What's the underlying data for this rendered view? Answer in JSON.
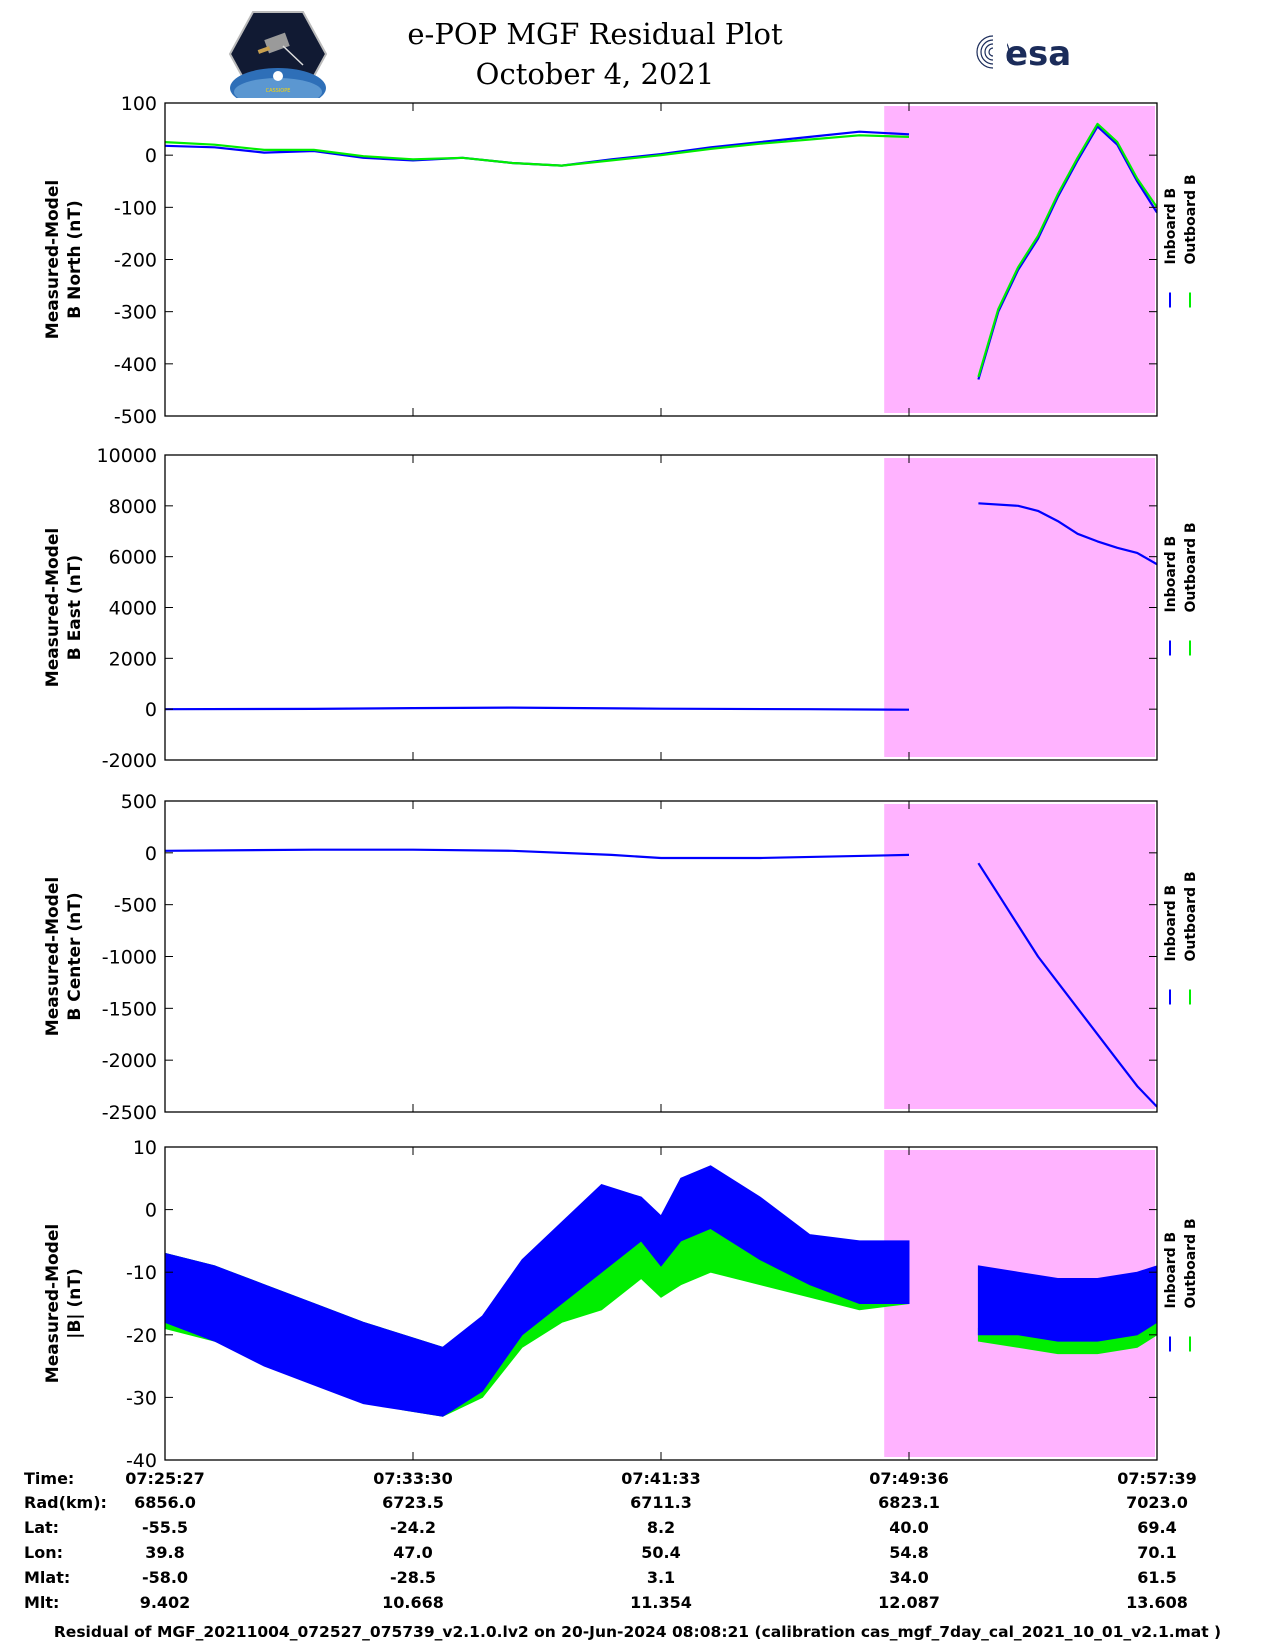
{
  "header": {
    "title_line1": "e-POP MGF Residual Plot",
    "title_line2": "October 4, 2021",
    "logo_left_icon": "cassiope-mission-badge",
    "logo_left_text": "CASSIOPE",
    "logo_right_icon": "esa-logo",
    "logo_right_text": "esa"
  },
  "colors": {
    "inboard": "#0000ff",
    "outboard": "#00ee00",
    "shade": "#ffb3ff"
  },
  "chart_data": [
    {
      "type": "line",
      "ylabel_line1": "Measured-Model",
      "ylabel_line2": "B North (nT)",
      "ylim": [
        -500,
        100
      ],
      "yticks": [
        100,
        0,
        -100,
        -200,
        -300,
        -400,
        -500
      ],
      "legend": [
        "Inboard B",
        "Outboard B"
      ],
      "legend_placement": "right",
      "series": [
        {
          "name": "Inboard B",
          "color": "#0000ff",
          "x": [
            0,
            0.05,
            0.1,
            0.15,
            0.2,
            0.25,
            0.3,
            0.35,
            0.4,
            0.45,
            0.5,
            0.55,
            0.6,
            0.65,
            0.7,
            0.75
          ],
          "y": [
            18,
            15,
            5,
            8,
            -5,
            -10,
            -5,
            -15,
            -20,
            -8,
            2,
            15,
            25,
            35,
            45,
            40
          ]
        },
        {
          "name": "Outboard B",
          "color": "#00ee00",
          "x": [
            0,
            0.05,
            0.1,
            0.15,
            0.2,
            0.25,
            0.3,
            0.35,
            0.4,
            0.45,
            0.5,
            0.55,
            0.6,
            0.65,
            0.7,
            0.75
          ],
          "y": [
            25,
            20,
            10,
            10,
            -2,
            -8,
            -5,
            -15,
            -20,
            -10,
            0,
            12,
            22,
            30,
            38,
            35
          ]
        },
        {
          "name": "Inboard B",
          "color": "#0000ff",
          "x": [
            0.82,
            0.84,
            0.86,
            0.88,
            0.9,
            0.92,
            0.94,
            0.96,
            0.98,
            1.0
          ],
          "y": [
            -430,
            -300,
            -220,
            -160,
            -80,
            -10,
            55,
            20,
            -50,
            -110
          ]
        },
        {
          "name": "Outboard B",
          "color": "#00ee00",
          "x": [
            0.82,
            0.84,
            0.86,
            0.88,
            0.9,
            0.92,
            0.94,
            0.96,
            0.98,
            1.0
          ],
          "y": [
            -425,
            -295,
            -215,
            -155,
            -75,
            -5,
            60,
            25,
            -45,
            -100
          ]
        }
      ]
    },
    {
      "type": "line",
      "ylabel_line1": "Measured-Model",
      "ylabel_line2": "B East (nT)",
      "ylim": [
        -2000,
        10000
      ],
      "yticks": [
        10000,
        8000,
        6000,
        4000,
        2000,
        0,
        -2000
      ],
      "legend": [
        "Inboard B",
        "Outboard B"
      ],
      "legend_placement": "right",
      "series": [
        {
          "name": "Inboard B",
          "color": "#0000ff",
          "x": [
            0,
            0.15,
            0.25,
            0.35,
            0.5,
            0.65,
            0.75
          ],
          "y": [
            0,
            10,
            40,
            60,
            20,
            0,
            -20
          ]
        },
        {
          "name": "Inboard B",
          "color": "#0000ff",
          "x": [
            0.82,
            0.86,
            0.88,
            0.9,
            0.92,
            0.94,
            0.96,
            0.98,
            1.0
          ],
          "y": [
            8100,
            8000,
            7800,
            7400,
            6900,
            6600,
            6350,
            6150,
            5700
          ]
        }
      ]
    },
    {
      "type": "line",
      "ylabel_line1": "Measured-Model",
      "ylabel_line2": "B Center (nT)",
      "ylim": [
        -2500,
        500
      ],
      "yticks": [
        500,
        0,
        -500,
        -1000,
        -1500,
        -2000,
        -2500
      ],
      "legend": [
        "Inboard B",
        "Outboard B"
      ],
      "legend_placement": "right",
      "series": [
        {
          "name": "Inboard B",
          "color": "#0000ff",
          "x": [
            0,
            0.15,
            0.25,
            0.35,
            0.45,
            0.5,
            0.6,
            0.75
          ],
          "y": [
            20,
            30,
            30,
            20,
            -20,
            -50,
            -50,
            -20
          ]
        },
        {
          "name": "Inboard B",
          "color": "#0000ff",
          "x": [
            0.82,
            0.84,
            0.86,
            0.88,
            0.9,
            0.92,
            0.94,
            0.96,
            0.98,
            1.0
          ],
          "y": [
            -100,
            -400,
            -700,
            -1000,
            -1250,
            -1500,
            -1750,
            -2000,
            -2250,
            -2450
          ]
        }
      ]
    },
    {
      "type": "line",
      "ylabel_line1": "Measured-Model",
      "ylabel_line2": "|B| (nT)",
      "ylim": [
        -40,
        10
      ],
      "yticks": [
        10,
        0,
        -10,
        -20,
        -30,
        -40
      ],
      "legend": [
        "Inboard B",
        "Outboard B"
      ],
      "legend_placement": "right",
      "series": [
        {
          "name": "Outboard B",
          "color": "#00ee00",
          "x": [
            0,
            0.05,
            0.1,
            0.15,
            0.2,
            0.24,
            0.28,
            0.32,
            0.36,
            0.4,
            0.44,
            0.48,
            0.5,
            0.52,
            0.55,
            0.6,
            0.65,
            0.7,
            0.75
          ],
          "y_top": [
            -7,
            -9,
            -12,
            -15,
            -18,
            -20,
            -22,
            -18,
            -10,
            -7,
            -6,
            -3,
            -8,
            -4,
            -1,
            -2,
            -6,
            -8,
            -8
          ],
          "y_bottom": [
            -19,
            -21,
            -24,
            -27,
            -30,
            -32,
            -33,
            -30,
            -22,
            -18,
            -16,
            -11,
            -14,
            -12,
            -10,
            -12,
            -14,
            -16,
            -15
          ]
        },
        {
          "name": "Inboard B",
          "color": "#0000ff",
          "x": [
            0,
            0.05,
            0.1,
            0.15,
            0.2,
            0.24,
            0.28,
            0.32,
            0.36,
            0.4,
            0.44,
            0.48,
            0.5,
            0.52,
            0.55,
            0.6,
            0.65,
            0.7,
            0.75
          ],
          "y_top": [
            -7,
            -9,
            -12,
            -15,
            -18,
            -20,
            -22,
            -17,
            -8,
            -2,
            4,
            2,
            -1,
            5,
            7,
            2,
            -4,
            -5,
            -5
          ],
          "y_bottom": [
            -18,
            -21,
            -25,
            -28,
            -31,
            -32,
            -33,
            -29,
            -20,
            -15,
            -10,
            -5,
            -9,
            -5,
            -3,
            -8,
            -12,
            -15,
            -15
          ]
        },
        {
          "name": "Outboard B",
          "color": "#00ee00",
          "x": [
            0.82,
            0.86,
            0.9,
            0.94,
            0.98,
            1.0
          ],
          "y_top": [
            -19,
            -20,
            -21,
            -21,
            -20,
            -18
          ],
          "y_bottom": [
            -21,
            -22,
            -23,
            -23,
            -22,
            -20
          ]
        },
        {
          "name": "Inboard B",
          "color": "#0000ff",
          "x": [
            0.82,
            0.86,
            0.9,
            0.94,
            0.98,
            1.0
          ],
          "y_top": [
            -9,
            -10,
            -11,
            -11,
            -10,
            -9
          ],
          "y_bottom": [
            -20,
            -20,
            -21,
            -21,
            -20,
            -18
          ]
        }
      ]
    }
  ],
  "shaded_region_x": [
    0.725,
    1.0
  ],
  "x_ticks": [
    0,
    0.25,
    0.5,
    0.75,
    1.0
  ],
  "stats": {
    "labels": [
      "Time:",
      "Rad(km):",
      "Lat:",
      "Lon:",
      "Mlat:",
      "Mlt:"
    ],
    "columns": [
      [
        "07:25:27",
        "6856.0",
        "-55.5",
        "39.8",
        "-58.0",
        "9.402"
      ],
      [
        "07:33:30",
        "6723.5",
        "-24.2",
        "47.0",
        "-28.5",
        "10.668"
      ],
      [
        "07:41:33",
        "6711.3",
        "8.2",
        "50.4",
        "3.1",
        "11.354"
      ],
      [
        "07:49:36",
        "6823.1",
        "40.0",
        "54.8",
        "34.0",
        "12.087"
      ],
      [
        "07:57:39",
        "7023.0",
        "69.4",
        "70.1",
        "61.5",
        "13.608"
      ]
    ]
  },
  "footer": "Residual of MGF_20211004_072527_075739_v2.1.0.lv2 on 20-Jun-2024 08:08:21 (calibration cas_mgf_7day_cal_2021_10_01_v2.1.mat )"
}
